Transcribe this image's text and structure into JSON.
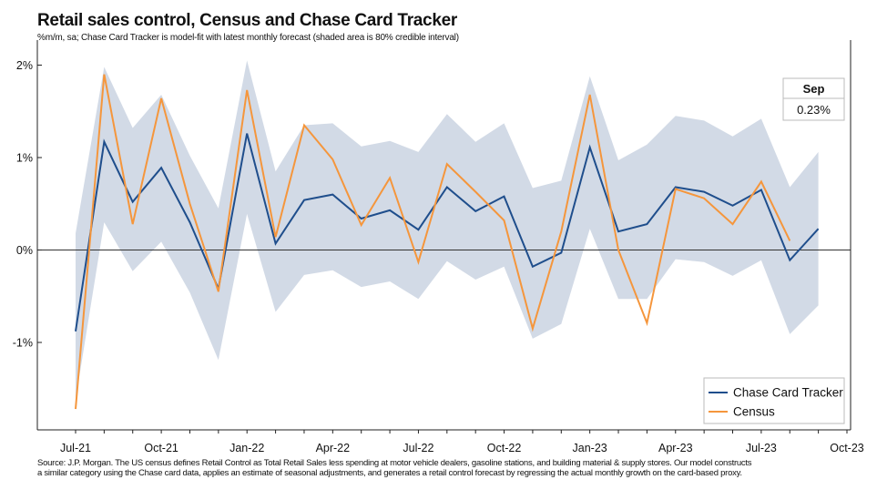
{
  "chart_data": {
    "type": "line",
    "title": "Retail sales control, Census and Chase Card Tracker",
    "subtitle": "%m/m, sa; Chase Card Tracker is model-fit with latest monthly forecast (shaded area is 80% credible interval)",
    "xlabel": "",
    "ylabel": "",
    "x": [
      "2021-07",
      "2021-08",
      "2021-09",
      "2021-10",
      "2021-11",
      "2021-12",
      "2022-01",
      "2022-02",
      "2022-03",
      "2022-04",
      "2022-05",
      "2022-06",
      "2022-07",
      "2022-08",
      "2022-09",
      "2022-10",
      "2022-11",
      "2022-12",
      "2023-01",
      "2023-02",
      "2023-03",
      "2023-04",
      "2023-05",
      "2023-06",
      "2023-07",
      "2023-08",
      "2023-09"
    ],
    "x_tick_labels": [
      {
        "x": "2021-07",
        "label": "Jul-21"
      },
      {
        "x": "2021-10",
        "label": "Oct-21"
      },
      {
        "x": "2022-01",
        "label": "Jan-22"
      },
      {
        "x": "2022-04",
        "label": "Apr-22"
      },
      {
        "x": "2022-07",
        "label": "Jul-22"
      },
      {
        "x": "2022-10",
        "label": "Oct-22"
      },
      {
        "x": "2023-01",
        "label": "Jan-23"
      },
      {
        "x": "2023-04",
        "label": "Apr-23"
      },
      {
        "x": "2023-07",
        "label": "Jul-23"
      },
      {
        "x": "2023-10",
        "label": "Oct-23"
      }
    ],
    "ylim": [
      -1.95,
      2.05
    ],
    "y_ticks": [
      {
        "value": 2,
        "label": "2%"
      },
      {
        "value": 1,
        "label": "1%"
      },
      {
        "value": 0,
        "label": "0%"
      },
      {
        "value": -1,
        "label": "-1%"
      }
    ],
    "grid": false,
    "zero_line": true,
    "series": [
      {
        "name": "Chase Card Tracker",
        "color": "#1f4e8c",
        "values": [
          -0.88,
          1.17,
          0.52,
          0.89,
          0.3,
          -0.42,
          1.26,
          0.07,
          0.54,
          0.6,
          0.34,
          0.43,
          0.22,
          0.68,
          0.42,
          0.58,
          -0.18,
          -0.03,
          1.11,
          0.2,
          0.28,
          0.68,
          0.63,
          0.48,
          0.65,
          -0.11,
          0.23
        ]
      },
      {
        "name": "Census",
        "color": "#f5963c",
        "values": [
          -1.72,
          1.9,
          0.28,
          1.64,
          0.5,
          -0.45,
          1.73,
          0.14,
          1.35,
          0.98,
          0.27,
          0.78,
          -0.13,
          0.93,
          0.63,
          0.32,
          -0.85,
          0.2,
          1.68,
          0.0,
          -0.79,
          0.66,
          0.56,
          0.28,
          0.74,
          0.1,
          null
        ]
      }
    ],
    "interval": {
      "name": "80% credible interval",
      "color": "#d2dae6",
      "upper": [
        0.18,
        1.98,
        1.32,
        1.68,
        1.02,
        0.45,
        2.05,
        0.85,
        1.35,
        1.37,
        1.12,
        1.18,
        1.06,
        1.47,
        1.17,
        1.37,
        0.67,
        0.75,
        1.88,
        0.97,
        1.14,
        1.45,
        1.4,
        1.23,
        1.42,
        0.68,
        1.06
      ],
      "lower": [
        -1.62,
        0.3,
        -0.23,
        0.09,
        -0.46,
        -1.19,
        0.39,
        -0.67,
        -0.27,
        -0.22,
        -0.4,
        -0.34,
        -0.53,
        -0.12,
        -0.32,
        -0.18,
        -0.96,
        -0.8,
        0.23,
        -0.53,
        -0.53,
        -0.1,
        -0.13,
        -0.28,
        -0.11,
        -0.91,
        -0.6
      ]
    },
    "legend": {
      "placement": "bottom-right",
      "entries": [
        "Chase Card Tracker",
        "Census"
      ]
    },
    "annotation": {
      "header": "Sep",
      "value": "0.23%",
      "placement": "top-right"
    }
  },
  "source_lines": [
    "Source: J.P. Morgan. The US census defines Retail Control as Total Retail Sales less spending at motor vehicle dealers, gasoline stations, and building material & supply stores. Our model constructs",
    " a similar category using the Chase card data, applies an estimate of seasonal adjustments, and generates a retail control forecast by regressing the actual monthly growth on the card-based proxy."
  ]
}
